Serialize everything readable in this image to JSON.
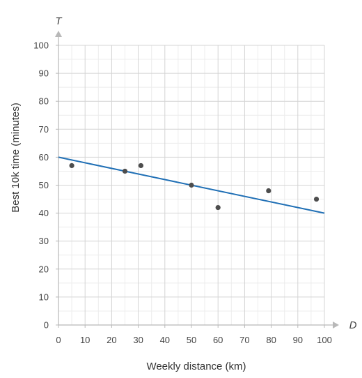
{
  "chart_data": {
    "type": "scatter",
    "xlabel": "Weekly distance (km)",
    "ylabel": "Best 10k time (minutes)",
    "x_axis_letter": "D",
    "y_axis_letter": "T",
    "xlim": [
      0,
      100
    ],
    "ylim": [
      0,
      100
    ],
    "x_ticks": [
      0,
      10,
      20,
      30,
      40,
      50,
      60,
      70,
      80,
      90,
      100
    ],
    "y_ticks": [
      0,
      10,
      20,
      30,
      40,
      50,
      60,
      70,
      80,
      90,
      100
    ],
    "x_tick_labels": [
      "0",
      "10",
      "20",
      "30",
      "40",
      "50",
      "60",
      "70",
      "80",
      "90",
      "100"
    ],
    "y_tick_labels": [
      "0",
      "10",
      "20",
      "30",
      "40",
      "50",
      "60",
      "70",
      "80",
      "90",
      "100"
    ],
    "minor_step": 5,
    "grid": true,
    "points": [
      {
        "x": 5,
        "y": 57
      },
      {
        "x": 25,
        "y": 55
      },
      {
        "x": 31,
        "y": 57
      },
      {
        "x": 50,
        "y": 50
      },
      {
        "x": 60,
        "y": 42
      },
      {
        "x": 79,
        "y": 48
      },
      {
        "x": 97,
        "y": 45
      }
    ],
    "trend_line": {
      "x": [
        0,
        100
      ],
      "y": [
        60,
        40
      ]
    },
    "colors": {
      "points": "#4d4d4d",
      "trend_line": "#1f6fb5",
      "grid_major": "#d4d4d4",
      "grid_minor": "#ececec",
      "axis": "#b8b8b8"
    }
  }
}
